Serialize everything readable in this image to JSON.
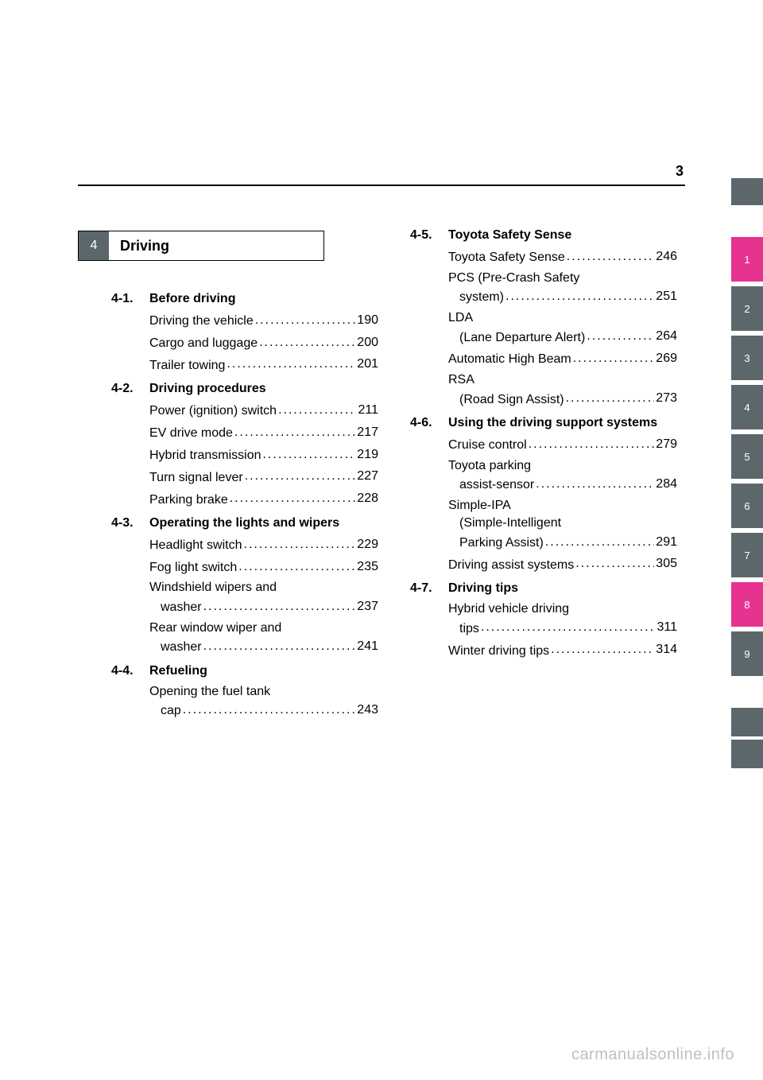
{
  "page_number": "3",
  "chapter": {
    "num": "4",
    "title": "Driving"
  },
  "sections_left": [
    {
      "num": "4-1.",
      "title": "Before driving",
      "entries": [
        {
          "label": "Driving the vehicle",
          "page": "190"
        },
        {
          "label": "Cargo and luggage",
          "page": "200"
        },
        {
          "label": "Trailer towing",
          "page": "201"
        }
      ]
    },
    {
      "num": "4-2.",
      "title": "Driving procedures",
      "entries": [
        {
          "label": "Power (ignition) switch",
          "page": "211"
        },
        {
          "label": "EV drive mode",
          "page": "217"
        },
        {
          "label": "Hybrid transmission",
          "page": "219"
        },
        {
          "label": "Turn signal lever",
          "page": "227"
        },
        {
          "label": "Parking brake",
          "page": "228"
        }
      ]
    },
    {
      "num": "4-3.",
      "title": "Operating the lights and wipers",
      "entries": [
        {
          "label": "Headlight switch",
          "page": "229"
        },
        {
          "label": "Fog light switch",
          "page": "235"
        },
        {
          "label": "Windshield wipers and",
          "label2": "washer",
          "page": "237"
        },
        {
          "label": "Rear window wiper and",
          "label2": "washer",
          "page": "241"
        }
      ]
    },
    {
      "num": "4-4.",
      "title": "Refueling",
      "entries": [
        {
          "label": "Opening the fuel tank",
          "label2": "cap",
          "page": "243"
        }
      ]
    }
  ],
  "sections_right": [
    {
      "num": "4-5.",
      "title": "Toyota Safety Sense",
      "entries": [
        {
          "label": "Toyota Safety Sense",
          "page": "246"
        },
        {
          "label": "PCS (Pre-Crash Safety",
          "label2": "system)",
          "page": "251"
        },
        {
          "label": "LDA",
          "label2": "(Lane Departure Alert)",
          "page": "264"
        },
        {
          "label": "Automatic High Beam",
          "page": "269"
        },
        {
          "label": "RSA",
          "label2": "(Road Sign Assist)",
          "page": "273"
        }
      ]
    },
    {
      "num": "4-6.",
      "title": "Using the driving support systems",
      "entries": [
        {
          "label": "Cruise control",
          "page": "279"
        },
        {
          "label": "Toyota parking",
          "label2": "assist-sensor",
          "page": "284"
        },
        {
          "label": "Simple-IPA",
          "label2": "(Simple-Intelligent",
          "label3": "Parking Assist)",
          "page": "291"
        },
        {
          "label": "Driving assist systems",
          "page": "305"
        }
      ]
    },
    {
      "num": "4-7.",
      "title": "Driving tips",
      "entries": [
        {
          "label": "Hybrid vehicle driving",
          "label2": "tips",
          "page": "311"
        },
        {
          "label": "Winter driving tips",
          "page": "314"
        }
      ]
    }
  ],
  "tabs": [
    "1",
    "2",
    "3",
    "4",
    "5",
    "6",
    "7",
    "8",
    "9"
  ],
  "tabs_active": [
    0,
    7
  ],
  "colors": {
    "tab_inactive": "#5c676c",
    "tab_active": "#e63390"
  },
  "watermark": "carmanualsonline.info"
}
